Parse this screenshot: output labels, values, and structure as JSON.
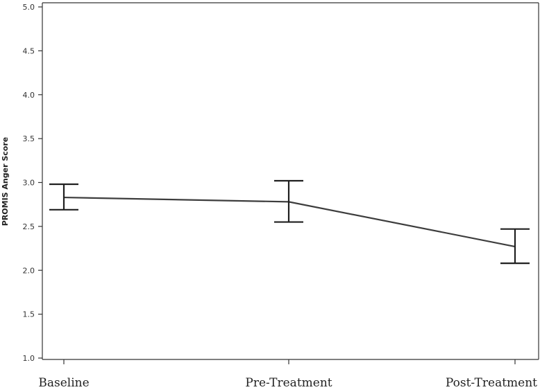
{
  "chart_data": {
    "type": "line",
    "title": "",
    "xlabel": "",
    "ylabel": "PROMIS Anger Score",
    "categories": [
      "Baseline",
      "Pre-Treatment",
      "Post-Treatment"
    ],
    "series": [
      {
        "values": [
          2.83,
          2.78,
          2.27
        ],
        "error_low": [
          2.69,
          2.55,
          2.08
        ],
        "error_high": [
          2.98,
          3.02,
          2.47
        ]
      }
    ],
    "ylim": [
      1.0,
      5.0
    ],
    "yticks": [
      "1.0",
      "1.5",
      "2.0",
      "2.5",
      "3.0",
      "3.5",
      "4.0",
      "4.5",
      "5.0"
    ],
    "grid": false,
    "legend": "none",
    "line_color": "#3d3d3d"
  }
}
